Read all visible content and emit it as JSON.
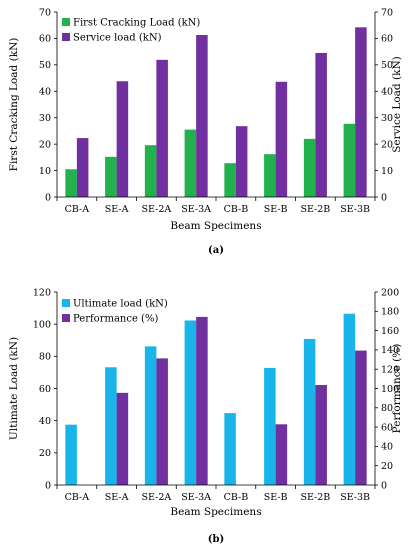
{
  "chart_data": [
    {
      "type": "bar",
      "panel_label": "(a)",
      "categories": [
        "CB-A",
        "SE-A",
        "SE-2A",
        "SE-3A",
        "CB-B",
        "SE-B",
        "SE-2B",
        "SE-3B"
      ],
      "series": [
        {
          "name": "First Cracking Load (kN)",
          "axis": "left",
          "color": "#22b14c",
          "values": [
            10.5,
            15.2,
            19.6,
            25.5,
            12.8,
            16.2,
            22.0,
            27.7
          ]
        },
        {
          "name": "Service load (kN)",
          "axis": "right",
          "color": "#7030a0",
          "values": [
            22.3,
            43.8,
            51.9,
            61.3,
            26.8,
            43.6,
            54.5,
            64.2
          ]
        }
      ],
      "xlabel": "Beam Specimens",
      "ylabel_left": "First Cracking Load (kN)",
      "ylabel_right": "Service Load (kN)",
      "ylim_left": [
        0,
        70
      ],
      "ylim_right": [
        0,
        70
      ],
      "yticks_left": [
        0,
        10,
        20,
        30,
        40,
        50,
        60,
        70
      ],
      "yticks_right": [
        0,
        10,
        20,
        30,
        40,
        50,
        60,
        70
      ],
      "grid": false,
      "legend_position": "top-left"
    },
    {
      "type": "bar",
      "panel_label": "(b)",
      "categories": [
        "CB-A",
        "SE-A",
        "SE-2A",
        "SE-3A",
        "CB-B",
        "SE-B",
        "SE-2B",
        "SE-3B"
      ],
      "series": [
        {
          "name": "Ultimate load (kN)",
          "axis": "left",
          "color": "#19b5ea",
          "values": [
            37.5,
            73.2,
            86.2,
            102.3,
            44.7,
            72.8,
            90.8,
            106.5
          ]
        },
        {
          "name": "Performance (%)",
          "axis": "right",
          "color": "#7030a0",
          "values": [
            0,
            95.5,
            131.2,
            174.2,
            0,
            62.9,
            103.6,
            139.3
          ]
        }
      ],
      "xlabel": "Beam Specimens",
      "ylabel_left": "Ultimate Load (kN)",
      "ylabel_right": "Performance (%)",
      "ylim_left": [
        0,
        120
      ],
      "ylim_right": [
        0,
        200
      ],
      "yticks_left": [
        0,
        20,
        40,
        60,
        80,
        100,
        120
      ],
      "yticks_right": [
        0,
        20,
        40,
        60,
        80,
        100,
        120,
        140,
        160,
        180,
        200
      ],
      "grid": false,
      "legend_position": "top-left"
    }
  ]
}
